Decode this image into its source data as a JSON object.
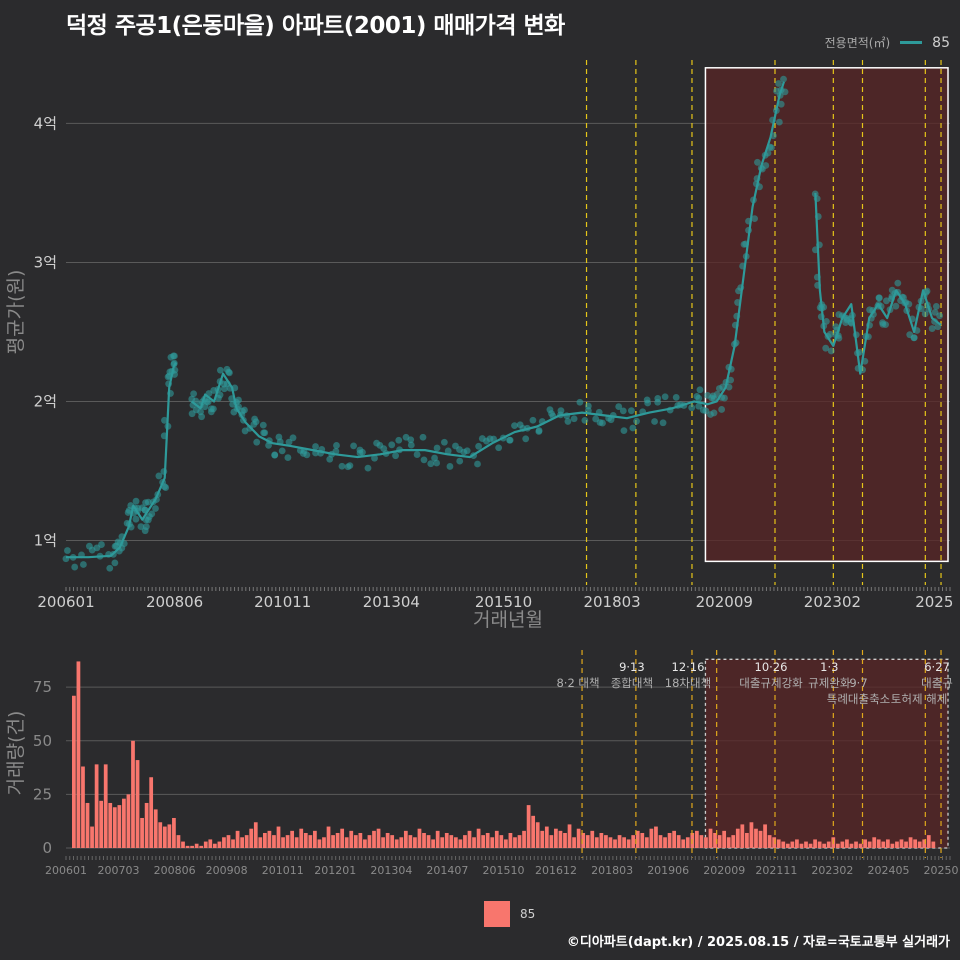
{
  "title": "덕정 주공1(은동마을) 아파트(2001) 매매가격 변화",
  "legend_top": {
    "title": "전용면적(㎡)",
    "value": "85"
  },
  "legend_bottom": {
    "value": "85"
  },
  "credit": "©디아파트(dapt.kr) / 2025.08.15 / 자료=국토교통부 실거래가",
  "colors": {
    "line": "#2e9a9a",
    "bar": "#f8766d",
    "policy_line": "#e6c619",
    "highlight_fill": "#5a2525"
  },
  "chart_data": [
    {
      "type": "line",
      "name": "price",
      "title": "덕정 주공1(은동마을) 아파트(2001) 매매가격 변화",
      "xlabel": "거래년월",
      "ylabel": "평균가(원)",
      "x_ticks": [
        "200601",
        "200806",
        "201011",
        "201304",
        "201510",
        "201803",
        "202009",
        "202302",
        "2025"
      ],
      "y_ticks": [
        "1억",
        "2억",
        "3억",
        "4억"
      ],
      "y_tick_values": [
        1,
        2,
        3,
        4
      ],
      "ylim": [
        0.68,
        4.6
      ],
      "x_range": [
        2006.0,
        2025.7
      ],
      "series": [
        {
          "name": "85",
          "x": [
            2006.0,
            2006.5,
            2007.0,
            2007.2,
            2007.4,
            2007.5,
            2007.7,
            2007.8,
            2008.0,
            2008.2,
            2008.3,
            2008.4,
            2008.45,
            2008.6,
            2008.8,
            2009.0,
            2009.1,
            2009.3,
            2009.5,
            2009.7,
            2009.8,
            2010.0,
            2010.3,
            2010.6,
            2011.0,
            2011.5,
            2012.0,
            2012.5,
            2013.0,
            2013.5,
            2014.0,
            2014.5,
            2015.0,
            2015.5,
            2016.0,
            2016.5,
            2017.0,
            2017.5,
            2018.0,
            2018.5,
            2019.0,
            2019.5,
            2020.0,
            2020.3,
            2020.5,
            2020.7,
            2020.9,
            2021.1,
            2021.3,
            2021.5,
            2021.7,
            2021.9,
            2022.0,
            2022.3,
            2022.7,
            2022.8,
            2022.9,
            2023.1,
            2023.3,
            2023.5,
            2023.7,
            2023.9,
            2024.1,
            2024.3,
            2024.5,
            2024.7,
            2024.9,
            2025.1,
            2025.3,
            2025.5
          ],
          "y": [
            0.88,
            0.88,
            0.89,
            0.95,
            1.1,
            1.25,
            1.15,
            1.2,
            1.3,
            1.45,
            2.1,
            2.25,
            2.28,
            null,
            2.0,
            1.95,
            2.05,
            2.0,
            2.2,
            2.1,
            1.95,
            1.85,
            1.75,
            1.7,
            1.68,
            1.65,
            1.62,
            1.6,
            1.62,
            1.65,
            1.65,
            1.62,
            1.6,
            1.7,
            1.78,
            1.82,
            1.9,
            1.92,
            1.9,
            1.88,
            1.92,
            1.95,
            2.0,
            1.98,
            2.0,
            2.1,
            2.4,
            2.9,
            3.4,
            3.7,
            3.9,
            4.2,
            4.3,
            null,
            3.5,
            2.8,
            2.5,
            2.4,
            2.6,
            2.7,
            2.2,
            2.6,
            2.7,
            2.6,
            2.8,
            2.7,
            2.5,
            2.8,
            2.6,
            2.55
          ]
        }
      ],
      "highlight_box": {
        "x_from": 2020.25,
        "x_to": 2025.7,
        "y_from": 0.85,
        "y_to": 4.4
      },
      "policy_lines_x": [
        2017.6,
        2018.7,
        2019.95,
        2021.8,
        2023.1,
        2023.75,
        2025.15,
        2025.5
      ]
    },
    {
      "type": "bar",
      "name": "volume",
      "xlabel": "",
      "ylabel": "거래량(건)",
      "y_ticks": [
        "0",
        "25",
        "50",
        "75"
      ],
      "y_tick_values": [
        0,
        25,
        50,
        75
      ],
      "ylim": [
        0,
        90
      ],
      "x_ticks": [
        "200601",
        "200703",
        "200806",
        "200908",
        "201011",
        "201201",
        "201304",
        "201407",
        "201510",
        "201612",
        "201803",
        "201906",
        "202009",
        "202111",
        "202302",
        "202405",
        "20250"
      ],
      "x_range": [
        2006.0,
        2025.7
      ],
      "series": [
        {
          "name": "85",
          "values": [
            71,
            87,
            38,
            21,
            10,
            39,
            22,
            39,
            21,
            19,
            20,
            23,
            25,
            50,
            41,
            14,
            21,
            33,
            18,
            12,
            10,
            11,
            14,
            6,
            3,
            1,
            1,
            2,
            1,
            3,
            4,
            2,
            3,
            5,
            6,
            4,
            8,
            5,
            6,
            9,
            12,
            5,
            7,
            8,
            6,
            10,
            5,
            6,
            8,
            5,
            9,
            7,
            6,
            8,
            4,
            5,
            10,
            6,
            7,
            9,
            5,
            8,
            6,
            7,
            4,
            6,
            8,
            9,
            5,
            7,
            6,
            4,
            5,
            8,
            6,
            5,
            9,
            7,
            6,
            4,
            8,
            5,
            7,
            6,
            5,
            4,
            6,
            8,
            5,
            9,
            6,
            7,
            5,
            8,
            6,
            4,
            7,
            5,
            6,
            8,
            20,
            15,
            12,
            8,
            10,
            6,
            9,
            8,
            7,
            11,
            5,
            9,
            7,
            6,
            8,
            5,
            7,
            6,
            5,
            4,
            6,
            5,
            4,
            6,
            8,
            7,
            5,
            9,
            10,
            6,
            5,
            7,
            8,
            6,
            4,
            5,
            7,
            8,
            6,
            5,
            9,
            7,
            6,
            8,
            5,
            6,
            9,
            11,
            7,
            12,
            9,
            8,
            11,
            6,
            5,
            4,
            3,
            2,
            3,
            4,
            2,
            3,
            2,
            4,
            3,
            2,
            3,
            5,
            2,
            3,
            4,
            2,
            3,
            2,
            4,
            3,
            5,
            4,
            3,
            4,
            2,
            3,
            4,
            3,
            5,
            4,
            3,
            4,
            6,
            3
          ]
        }
      ],
      "highlight_box": {
        "x_from": 2020.25,
        "x_to": 2025.7,
        "y_from": 0,
        "y_to": 88
      },
      "policy_lines_x": [
        2017.5,
        2018.7,
        2019.95,
        2020.5,
        2021.8,
        2023.1,
        2023.75,
        2025.15,
        2025.5
      ],
      "annotations": [
        {
          "label": "8·2 대책",
          "x": 2017.5,
          "row": 1
        },
        {
          "label": "9·13",
          "x": 2018.7,
          "row": 0
        },
        {
          "label": "종합대책",
          "x": 2018.7,
          "row": 1
        },
        {
          "label": "12·16",
          "x": 2019.95,
          "row": 0
        },
        {
          "label": "18차대책",
          "x": 2019.95,
          "row": 1
        },
        {
          "label": "10·26",
          "x": 2021.8,
          "row": 0
        },
        {
          "label": "대출규제강화",
          "x": 2021.8,
          "row": 1
        },
        {
          "label": "1·3",
          "x": 2023.1,
          "row": 0
        },
        {
          "label": "규제완화",
          "x": 2023.1,
          "row": 1
        },
        {
          "label": "9·7",
          "x": 2023.75,
          "row": 1
        },
        {
          "label": "특례대출축소",
          "x": 2023.75,
          "row": 2
        },
        {
          "label": "토허제 해제",
          "x": 2025.1,
          "row": 2
        },
        {
          "label": "6·27",
          "x": 2025.5,
          "row": 0
        },
        {
          "label": "대출규",
          "x": 2025.5,
          "row": 1
        }
      ]
    }
  ]
}
